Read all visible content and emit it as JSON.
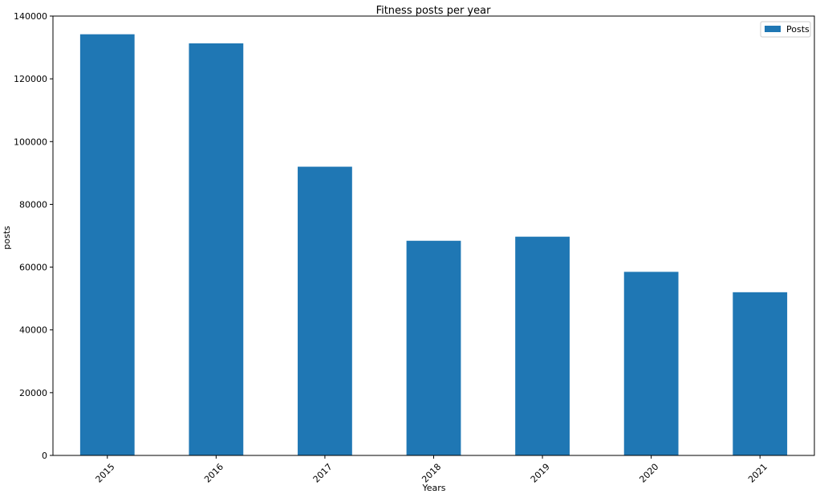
{
  "chart_data": {
    "type": "bar",
    "title": "Fitness posts per year",
    "xlabel": "Years",
    "ylabel": "posts",
    "categories": [
      "2015",
      "2016",
      "2017",
      "2018",
      "2019",
      "2020",
      "2021"
    ],
    "series": [
      {
        "name": "Posts",
        "color": "#1f77b4",
        "values": [
          134200,
          131300,
          92000,
          68400,
          69700,
          58500,
          52000
        ]
      }
    ],
    "ylim": [
      0,
      140000
    ],
    "yticks": [
      0,
      20000,
      40000,
      60000,
      80000,
      100000,
      120000,
      140000
    ],
    "ytick_labels": [
      "0",
      "20000",
      "40000",
      "60000",
      "80000",
      "100000",
      "120000",
      "140000"
    ],
    "xtick_rotation": "45 degrees",
    "grid": false,
    "legend_position": "top-right"
  }
}
